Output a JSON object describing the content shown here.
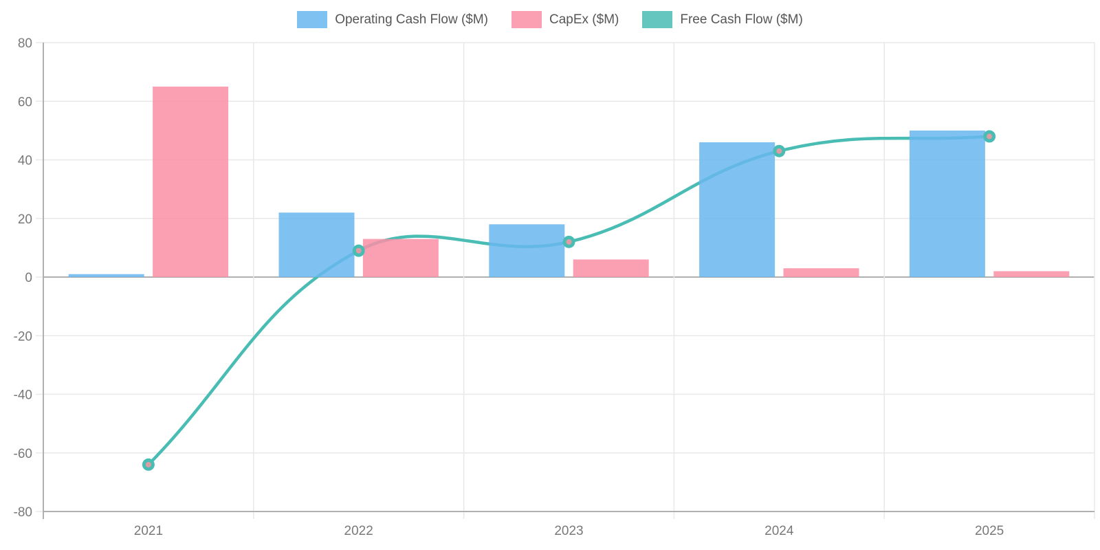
{
  "chart_data": {
    "type": "bar",
    "title": "",
    "categories": [
      "2021",
      "2022",
      "2023",
      "2024",
      "2025"
    ],
    "series": [
      {
        "name": "Operating Cash Flow ($M)",
        "kind": "bar",
        "color": "#69B7EE",
        "values": [
          1,
          22,
          18,
          46,
          50
        ]
      },
      {
        "name": "CapEx ($M)",
        "kind": "bar",
        "color": "#FA8FA6",
        "values": [
          65,
          13,
          6,
          3,
          2
        ]
      },
      {
        "name": "Free Cash Flow ($M)",
        "kind": "line",
        "color": "#49BCB4",
        "point_fill": "#DE9CA3",
        "values": [
          -64,
          9,
          12,
          43,
          48
        ]
      }
    ],
    "xlabel": "",
    "ylabel": "",
    "ylim": [
      -80,
      80
    ],
    "ytick_step": 20,
    "grid": true,
    "legend_position": "top",
    "line_tension": 0.4,
    "colors": {
      "grid": "#E8E8E8",
      "axis": "#B0B0B0",
      "tick_text": "#787878",
      "legend_text": "#565656"
    }
  }
}
